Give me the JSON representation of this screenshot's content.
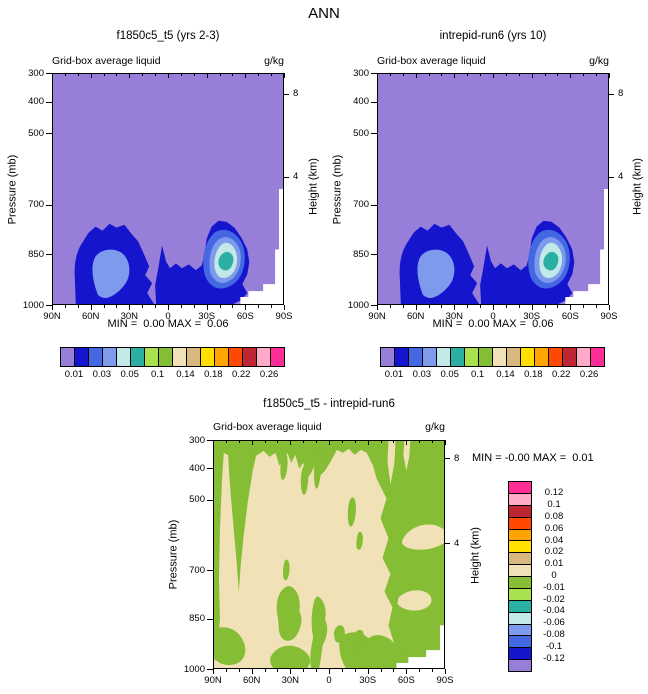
{
  "main_title": "ANN",
  "colors": {
    "purple": "#977FD9",
    "dark_blue": "#1515CE",
    "royal_blue": "#4467E2",
    "cornflower": "#7E9AEC",
    "pale_cyan": "#C2E8E8",
    "teal": "#2BAFA3",
    "light_green": "#A9E14F",
    "green": "#85BD34",
    "cream": "#F0E2B6",
    "tan": "#D8B87E",
    "yellow": "#FFDF00",
    "orange": "#FFA400",
    "red_orange": "#FF4900",
    "brick_red": "#BE2633",
    "pink": "#FFABC8",
    "magenta": "#FF2D96",
    "white": "#FFFFFF",
    "axis": "#000000"
  },
  "palette": [
    "#977FD9",
    "#1515CE",
    "#4467E2",
    "#7E9AEC",
    "#C2E8E8",
    "#2BAFA3",
    "#A9E14F",
    "#85BD34",
    "#F0E2B6",
    "#D8B87E",
    "#FFDF00",
    "#FFA400",
    "#FF4900",
    "#BE2633",
    "#FFABC8",
    "#FF2D96"
  ],
  "panels": [
    {
      "title": "f1850c5_t5 (yrs 2-3)",
      "subtitle_left": "Grid-box average liquid",
      "subtitle_right": "g/kg",
      "y_axis_label": "Pressure (mb)",
      "height_axis_label": "Height (km)",
      "min_max_label": "MIN =  0.00 MAX =  0.06",
      "y_ticks": [
        "300",
        "400",
        "500",
        "700",
        "850",
        "1000"
      ],
      "x_ticks": [
        "90N",
        "60N",
        "30N",
        "0",
        "30S",
        "60S",
        "90S"
      ],
      "height_ticks": [
        "8",
        "4"
      ],
      "colorbar_labels": [
        "0.01",
        "0.03",
        "0.05",
        "0.1",
        "0.14",
        "0.18",
        "0.22",
        "0.26"
      ]
    },
    {
      "title": "intrepid-run6 (yrs 10)",
      "subtitle_left": "Grid-box average liquid",
      "subtitle_right": "g/kg",
      "y_axis_label": "Pressure (mb)",
      "height_axis_label": "Height (km)",
      "min_max_label": "MIN =  0.00 MAX =  0.06",
      "y_ticks": [
        "300",
        "400",
        "500",
        "700",
        "850",
        "1000"
      ],
      "x_ticks": [
        "90N",
        "60N",
        "30N",
        "0",
        "30S",
        "60S",
        "90S"
      ],
      "height_ticks": [
        "8",
        "4"
      ],
      "colorbar_labels": [
        "0.01",
        "0.03",
        "0.05",
        "0.1",
        "0.14",
        "0.18",
        "0.22",
        "0.26"
      ]
    },
    {
      "title": "f1850c5_t5 - intrepid-run6",
      "subtitle_left": "Grid-box average liquid",
      "subtitle_right": "g/kg",
      "y_axis_label": "Pressure (mb)",
      "height_axis_label": "Height (km)",
      "min_max_label": "MIN = -0.00 MAX =  0.01",
      "y_ticks": [
        "300",
        "400",
        "500",
        "700",
        "850",
        "1000"
      ],
      "x_ticks": [
        "90N",
        "60N",
        "30N",
        "0",
        "30S",
        "60S",
        "90S"
      ],
      "height_ticks": [
        "8",
        "4"
      ],
      "colorbar_labels": [
        "0.12",
        "0.1",
        "0.08",
        "0.06",
        "0.04",
        "0.02",
        "0.01",
        "0",
        "-0.01",
        "-0.02",
        "-0.04",
        "-0.06",
        "-0.08",
        "-0.1",
        "-0.12"
      ]
    }
  ],
  "chart_data": [
    {
      "type": "heatmap",
      "subtype": "filled-contour latitude-pressure cross-section",
      "title": "f1850c5_t5 (yrs 2-3)",
      "variable": "Grid-box average liquid",
      "units": "g/kg",
      "x_axis": {
        "ticks": [
          "90N",
          "60N",
          "30N",
          "0",
          "30S",
          "60S",
          "90S"
        ]
      },
      "y_axis": {
        "label": "Pressure (mb)",
        "ticks": [
          300,
          400,
          500,
          700,
          850,
          1000
        ],
        "inverted": true
      },
      "secondary_y_axis": {
        "label": "Height (km)",
        "ticks": [
          8,
          4
        ]
      },
      "stats": {
        "min": 0.0,
        "max": 0.06
      },
      "labeled_contour_levels": [
        0.01,
        0.03,
        0.05,
        0.1,
        0.14,
        0.18,
        0.22,
        0.26
      ],
      "features": [
        {
          "region": "55N-80N, 780-1000 mb",
          "values": "0.01-0.04",
          "desc": "northern low-cloud liquid maximum, core 0.03-0.04"
        },
        {
          "region": "35S-55S, 760-1000 mb",
          "values": "0.01-0.06",
          "desc": "Southern Ocean maximum, peak ~0.05-0.06 near 45S 875 mb"
        },
        {
          "region": "rest of domain",
          "values": "< 0.01"
        },
        {
          "region": "below surface near 90S",
          "values": "masked (white)"
        }
      ]
    },
    {
      "type": "heatmap",
      "subtype": "filled-contour latitude-pressure cross-section",
      "title": "intrepid-run6 (yrs 10)",
      "variable": "Grid-box average liquid",
      "units": "g/kg",
      "x_axis": {
        "ticks": [
          "90N",
          "60N",
          "30N",
          "0",
          "30S",
          "60S",
          "90S"
        ]
      },
      "y_axis": {
        "label": "Pressure (mb)",
        "ticks": [
          300,
          400,
          500,
          700,
          850,
          1000
        ],
        "inverted": true
      },
      "secondary_y_axis": {
        "label": "Height (km)",
        "ticks": [
          8,
          4
        ]
      },
      "stats": {
        "min": 0.0,
        "max": 0.06
      },
      "labeled_contour_levels": [
        0.01,
        0.03,
        0.05,
        0.1,
        0.14,
        0.18,
        0.22,
        0.26
      ],
      "features": [
        {
          "region": "55N-80N, 780-1000 mb",
          "values": "0.01-0.04",
          "desc": "northern low-cloud liquid maximum"
        },
        {
          "region": "35S-55S, 760-1000 mb",
          "values": "0.01-0.06",
          "desc": "Southern Ocean maximum, peak ~0.05-0.06 near 45S 875 mb"
        },
        {
          "region": "rest of domain",
          "values": "< 0.01"
        },
        {
          "region": "below surface near 90S",
          "values": "masked (white)"
        }
      ]
    },
    {
      "type": "heatmap",
      "subtype": "filled-contour difference latitude-pressure cross-section",
      "title": "f1850c5_t5 - intrepid-run6",
      "variable": "Grid-box average liquid",
      "units": "g/kg",
      "x_axis": {
        "ticks": [
          "90N",
          "60N",
          "30N",
          "0",
          "30S",
          "60S",
          "90S"
        ]
      },
      "y_axis": {
        "label": "Pressure (mb)",
        "ticks": [
          300,
          400,
          500,
          700,
          850,
          1000
        ],
        "inverted": true
      },
      "secondary_y_axis": {
        "label": "Height (km)",
        "ticks": [
          8,
          4
        ]
      },
      "stats": {
        "min": -0.0,
        "max": 0.01
      },
      "labeled_contour_levels": [
        -0.12,
        -0.1,
        -0.08,
        -0.06,
        -0.04,
        -0.02,
        -0.01,
        0,
        0.01,
        0.02,
        0.04,
        0.06,
        0.08,
        0.1,
        0.12
      ],
      "features": [
        {
          "region": "most of interior domain",
          "values": "0 to 0.01",
          "desc": "slightly positive differences (cream)"
        },
        {
          "region": "polar flanks, upper levels and scattered low-level patches",
          "values": "-0.01 to 0",
          "desc": "slightly negative differences (green)"
        },
        {
          "region": "below surface near 90S",
          "values": "masked (white)"
        }
      ]
    }
  ]
}
